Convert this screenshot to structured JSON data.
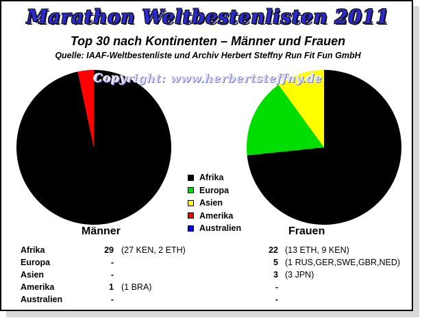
{
  "header": {
    "title": "Marathon Weltbestenlisten 2011",
    "subtitle": "Top 30 nach Kontinenten – Männer und Frauen",
    "source": "Quelle: IAAF-Weltbestenliste und Archiv Herbert Steffny Run Fit Fun GmbH",
    "copyright": "Copyright: www.herbertsteffny.de"
  },
  "legend": {
    "items": [
      {
        "label": "Afrika",
        "color": "#000000"
      },
      {
        "label": "Europa",
        "color": "#00dd00"
      },
      {
        "label": "Asien",
        "color": "#ffff00"
      },
      {
        "label": "Amerika",
        "color": "#ff0000"
      },
      {
        "label": "Australien",
        "color": "#0000ee"
      }
    ]
  },
  "chart_data": [
    {
      "type": "pie",
      "title": "Männer",
      "categories": [
        "Afrika",
        "Europa",
        "Asien",
        "Amerika",
        "Australien"
      ],
      "values": [
        29,
        0,
        0,
        1,
        0
      ],
      "colors": [
        "#000000",
        "#00dd00",
        "#ffff00",
        "#ff0000",
        "#0000ee"
      ]
    },
    {
      "type": "pie",
      "title": "Frauen",
      "categories": [
        "Afrika",
        "Europa",
        "Asien",
        "Amerika",
        "Australien"
      ],
      "values": [
        22,
        5,
        3,
        0,
        0
      ],
      "colors": [
        "#000000",
        "#00dd00",
        "#ffff00",
        "#ff0000",
        "#0000ee"
      ]
    }
  ],
  "table": {
    "rows": [
      {
        "name": "Afrika",
        "m_count": "29",
        "m_detail": "(27 KEN, 2 ETH)",
        "f_count": "22",
        "f_detail": "(13 ETH, 9 KEN)"
      },
      {
        "name": "Europa",
        "m_count": "-",
        "m_detail": "",
        "f_count": "5",
        "f_detail": "(1 RUS,GER,SWE,GBR,NED)"
      },
      {
        "name": "Asien",
        "m_count": "-",
        "m_detail": "",
        "f_count": "3",
        "f_detail": "(3 JPN)"
      },
      {
        "name": "Amerika",
        "m_count": "1",
        "m_detail": "(1 BRA)",
        "f_count": "-",
        "f_detail": ""
      },
      {
        "name": "Australien",
        "m_count": "-",
        "m_detail": "",
        "f_count": "-",
        "f_detail": ""
      }
    ]
  }
}
